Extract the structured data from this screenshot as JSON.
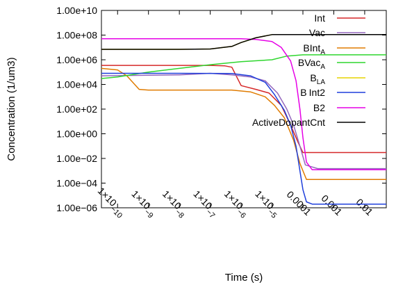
{
  "chart_data": {
    "type": "line",
    "title": "",
    "xlabel": "Time (s)",
    "ylabel": "Concentration (1/um3)",
    "x_scale": "log",
    "y_scale": "log",
    "xlim": [
      3e-11,
      0.05
    ],
    "ylim": [
      1e-06,
      10000000000.0
    ],
    "grid": false,
    "legend_position": "top-right",
    "x_ticks": [
      {
        "value": 1e-10,
        "mant": "1×10",
        "exp": "−10"
      },
      {
        "value": 1e-09,
        "mant": "1×10",
        "exp": "−9"
      },
      {
        "value": 1e-08,
        "mant": "1×10",
        "exp": "−8"
      },
      {
        "value": 1e-07,
        "mant": "1×10",
        "exp": "−7"
      },
      {
        "value": 1e-06,
        "mant": "1×10",
        "exp": "−6"
      },
      {
        "value": 1e-05,
        "mant": "1×10",
        "exp": "−5"
      },
      {
        "value": 0.0001,
        "mant": "0.0001",
        "exp": ""
      },
      {
        "value": 0.001,
        "mant": "0.001",
        "exp": ""
      },
      {
        "value": 0.01,
        "mant": "0.01",
        "exp": ""
      }
    ],
    "y_ticks": [
      {
        "value": 10000000000.0,
        "label": "1.00e+10"
      },
      {
        "value": 100000000.0,
        "label": "1.00e+08"
      },
      {
        "value": 1000000.0,
        "label": "1.00e+06"
      },
      {
        "value": 10000.0,
        "label": "1.00e+04"
      },
      {
        "value": 100,
        "label": "1.00e+02"
      },
      {
        "value": 1,
        "label": "1.00e+00"
      },
      {
        "value": 0.01,
        "label": "1.00e−02"
      },
      {
        "value": 0.0001,
        "label": "1.00e−04"
      },
      {
        "value": 1e-06,
        "label": "1.00e−06"
      }
    ],
    "series": [
      {
        "name": "Int",
        "sub": "",
        "name_tail": "",
        "color": "#d62728",
        "points": [
          [
            3e-11,
            350000.0
          ],
          [
            1e-07,
            350000.0
          ],
          [
            3e-07,
            320000.0
          ],
          [
            5e-07,
            250000.0
          ],
          [
            1e-06,
            8000.0
          ],
          [
            3e-06,
            4000.0
          ],
          [
            8e-06,
            2000.0
          ],
          [
            2e-05,
            200
          ],
          [
            4e-05,
            5
          ],
          [
            7e-05,
            0.2
          ],
          [
            0.0001,
            0.03
          ],
          [
            0.0003,
            0.03
          ],
          [
            0.05,
            0.03
          ]
        ]
      },
      {
        "name": "Vac",
        "sub": "",
        "name_tail": "",
        "color": "#9467bd",
        "points": [
          [
            3e-11,
            50000.0
          ],
          [
            1e-08,
            60000.0
          ],
          [
            1e-07,
            80000.0
          ],
          [
            5e-07,
            60000.0
          ],
          [
            2e-06,
            40000.0
          ],
          [
            6e-06,
            20000.0
          ],
          [
            1.5e-05,
            2000.0
          ],
          [
            3e-05,
            100
          ],
          [
            5e-05,
            5
          ],
          [
            8e-05,
            0.1
          ],
          [
            0.00012,
            0.003
          ],
          [
            0.0003,
            0.0015
          ],
          [
            0.05,
            0.0015
          ]
        ]
      },
      {
        "name": "BInt",
        "sub": "A",
        "name_tail": "",
        "color": "#e07b00",
        "points": [
          [
            3e-11,
            200000.0
          ],
          [
            1e-10,
            150000.0
          ],
          [
            2e-10,
            50000.0
          ],
          [
            5e-10,
            4000.0
          ],
          [
            1e-09,
            3500.0
          ],
          [
            5e-07,
            3500.0
          ],
          [
            2e-06,
            2500.0
          ],
          [
            6e-06,
            1000.0
          ],
          [
            1.2e-05,
            200
          ],
          [
            2.5e-05,
            20
          ],
          [
            5e-05,
            0.3
          ],
          [
            8e-05,
            0.004
          ],
          [
            0.00013,
            0.0002
          ],
          [
            0.0003,
            0.0002
          ],
          [
            0.05,
            0.0002
          ]
        ]
      },
      {
        "name": "BVac",
        "sub": "A",
        "name_tail": "",
        "color": "#2ed62e",
        "points": [
          [
            3e-11,
            30000.0
          ],
          [
            1e-10,
            40000.0
          ],
          [
            1e-09,
            100000.0
          ],
          [
            1e-08,
            200000.0
          ],
          [
            1e-07,
            400000.0
          ],
          [
            1e-06,
            700000.0
          ],
          [
            1e-05,
            1000000.0
          ],
          [
            3e-05,
            2000000.0
          ],
          [
            0.0001,
            2500000.0
          ],
          [
            0.05,
            2500000.0
          ]
        ]
      },
      {
        "name": "B",
        "sub": "LA",
        "name_tail": "",
        "color": "#e6d300",
        "points": [
          [
            3e-11,
            7000000.0
          ],
          [
            1e-08,
            7000000.0
          ],
          [
            1e-07,
            7500000.0
          ],
          [
            5e-07,
            12000000.0
          ],
          [
            1e-06,
            25000000.0
          ],
          [
            3e-06,
            60000000.0
          ],
          [
            1e-05,
            110000000.0
          ],
          [
            0.05,
            110000000.0
          ]
        ]
      },
      {
        "name": "B",
        "sub": "",
        "name_tail": "Int2",
        "color": "#1f3fdb",
        "points": [
          [
            3e-11,
            80000.0
          ],
          [
            1e-08,
            80000.0
          ],
          [
            5e-07,
            78000.0
          ],
          [
            2e-06,
            50000.0
          ],
          [
            6e-06,
            15000.0
          ],
          [
            1.2e-05,
            1500.0
          ],
          [
            2.5e-05,
            80
          ],
          [
            4e-05,
            5
          ],
          [
            6e-05,
            0.1
          ],
          [
            8e-05,
            0.001
          ],
          [
            0.0001,
            3e-05
          ],
          [
            0.00013,
            3e-06
          ],
          [
            0.0002,
            2e-06
          ],
          [
            0.05,
            2e-06
          ]
        ]
      },
      {
        "name": "B2",
        "sub": "",
        "name_tail": "",
        "color": "#e600e6",
        "points": [
          [
            3e-11,
            50000000.0
          ],
          [
            1e-06,
            50000000.0
          ],
          [
            3e-06,
            45000000.0
          ],
          [
            1e-05,
            30000000.0
          ],
          [
            2e-05,
            10000000.0
          ],
          [
            4e-05,
            800000.0
          ],
          [
            6e-05,
            20000.0
          ],
          [
            8e-05,
            100
          ],
          [
            0.0001,
            0.5
          ],
          [
            0.00013,
            0.005
          ],
          [
            0.0002,
            0.0012
          ],
          [
            0.05,
            0.0012
          ]
        ]
      },
      {
        "name": "ActiveDopantCnt",
        "sub": "",
        "name_tail": "",
        "color": "#000000",
        "points": [
          [
            3e-11,
            7000000.0
          ],
          [
            1e-08,
            7000000.0
          ],
          [
            1e-07,
            7500000.0
          ],
          [
            5e-07,
            12000000.0
          ],
          [
            1e-06,
            25000000.0
          ],
          [
            3e-06,
            60000000.0
          ],
          [
            1e-05,
            110000000.0
          ],
          [
            0.05,
            110000000.0
          ]
        ]
      }
    ]
  }
}
